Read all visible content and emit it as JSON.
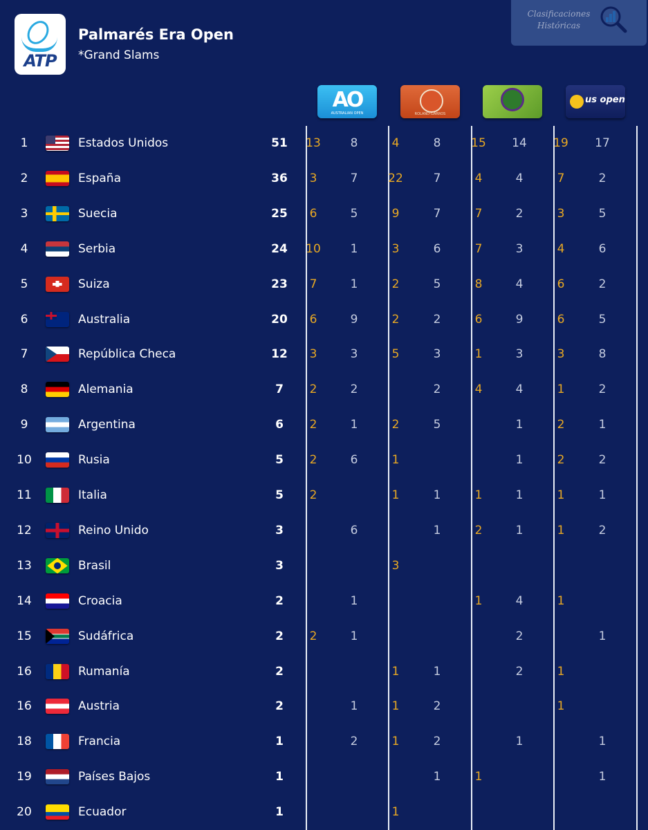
{
  "header": {
    "logo_text": "ATP",
    "title": "Palmarés Era Open",
    "subtitle": "*Grand Slams",
    "badge_line1": "Clasificaciones",
    "badge_line2": "Históricas"
  },
  "slams": [
    {
      "name": "Australian Open",
      "logo_text": "AO",
      "sub": "AUSTRALIAN OPEN"
    },
    {
      "name": "Roland Garros",
      "logo_text": "",
      "sub": "ROLAND-GARROS"
    },
    {
      "name": "Wimbledon",
      "logo_text": "",
      "sub": "WIMBLEDON"
    },
    {
      "name": "US Open",
      "logo_text": "us open",
      "sub": ""
    }
  ],
  "colors": {
    "background": "#0d1f5c",
    "titles_won": "#e9a923",
    "finals_lost": "#c6cde0"
  },
  "rows": [
    {
      "rank": "1",
      "country": "Estados Unidos",
      "total": "51",
      "flag": "us",
      "v": [
        "13",
        "8",
        "4",
        "8",
        "15",
        "14",
        "19",
        "17"
      ]
    },
    {
      "rank": "2",
      "country": "España",
      "total": "36",
      "flag": "es",
      "v": [
        "3",
        "7",
        "22",
        "7",
        "4",
        "4",
        "7",
        "2"
      ]
    },
    {
      "rank": "3",
      "country": "Suecia",
      "total": "25",
      "flag": "se",
      "v": [
        "6",
        "5",
        "9",
        "7",
        "7",
        "2",
        "3",
        "5"
      ]
    },
    {
      "rank": "4",
      "country": "Serbia",
      "total": "24",
      "flag": "rs",
      "v": [
        "10",
        "1",
        "3",
        "6",
        "7",
        "3",
        "4",
        "6"
      ]
    },
    {
      "rank": "5",
      "country": "Suiza",
      "total": "23",
      "flag": "ch",
      "v": [
        "7",
        "1",
        "2",
        "5",
        "8",
        "4",
        "6",
        "2"
      ]
    },
    {
      "rank": "6",
      "country": "Australia",
      "total": "20",
      "flag": "au",
      "v": [
        "6",
        "9",
        "2",
        "2",
        "6",
        "9",
        "6",
        "5"
      ]
    },
    {
      "rank": "7",
      "country": "República Checa",
      "total": "12",
      "flag": "cz",
      "v": [
        "3",
        "3",
        "5",
        "3",
        "1",
        "3",
        "3",
        "8"
      ]
    },
    {
      "rank": "8",
      "country": "Alemania",
      "total": "7",
      "flag": "de",
      "v": [
        "2",
        "2",
        "",
        "2",
        "4",
        "4",
        "1",
        "2"
      ]
    },
    {
      "rank": "9",
      "country": "Argentina",
      "total": "6",
      "flag": "ar",
      "v": [
        "2",
        "1",
        "2",
        "5",
        "",
        "1",
        "2",
        "1"
      ]
    },
    {
      "rank": "10",
      "country": "Rusia",
      "total": "5",
      "flag": "ru",
      "v": [
        "2",
        "6",
        "1",
        "",
        "",
        "1",
        "2",
        "2"
      ]
    },
    {
      "rank": "11",
      "country": "Italia",
      "total": "5",
      "flag": "it",
      "v": [
        "2",
        "",
        "1",
        "1",
        "1",
        "1",
        "1",
        "1"
      ]
    },
    {
      "rank": "12",
      "country": "Reino Unido",
      "total": "3",
      "flag": "gb",
      "v": [
        "",
        "6",
        "",
        "1",
        "2",
        "1",
        "1",
        "2"
      ]
    },
    {
      "rank": "13",
      "country": "Brasil",
      "total": "3",
      "flag": "br",
      "v": [
        "",
        "",
        "3",
        "",
        "",
        "",
        "",
        ""
      ]
    },
    {
      "rank": "14",
      "country": "Croacia",
      "total": "2",
      "flag": "hr",
      "v": [
        "",
        "1",
        "",
        "",
        "1",
        "4",
        "1",
        ""
      ]
    },
    {
      "rank": "15",
      "country": "Sudáfrica",
      "total": "2",
      "flag": "za",
      "v": [
        "2",
        "1",
        "",
        "",
        "",
        "2",
        "",
        "1"
      ]
    },
    {
      "rank": "16",
      "country": "Rumanía",
      "total": "2",
      "flag": "ro",
      "v": [
        "",
        "",
        "1",
        "1",
        "",
        "2",
        "1",
        ""
      ]
    },
    {
      "rank": "16",
      "country": "Austria",
      "total": "2",
      "flag": "at",
      "v": [
        "",
        "1",
        "1",
        "2",
        "",
        "",
        "1",
        ""
      ]
    },
    {
      "rank": "18",
      "country": "Francia",
      "total": "1",
      "flag": "fr",
      "v": [
        "",
        "2",
        "1",
        "2",
        "",
        "1",
        "",
        "1"
      ]
    },
    {
      "rank": "19",
      "country": "Países Bajos",
      "total": "1",
      "flag": "nl",
      "v": [
        "",
        "",
        "",
        "1",
        "1",
        "",
        "",
        "1"
      ]
    },
    {
      "rank": "20",
      "country": "Ecuador",
      "total": "1",
      "flag": "ec",
      "v": [
        "",
        "",
        "1",
        "",
        "",
        "",
        "",
        ""
      ]
    }
  ]
}
